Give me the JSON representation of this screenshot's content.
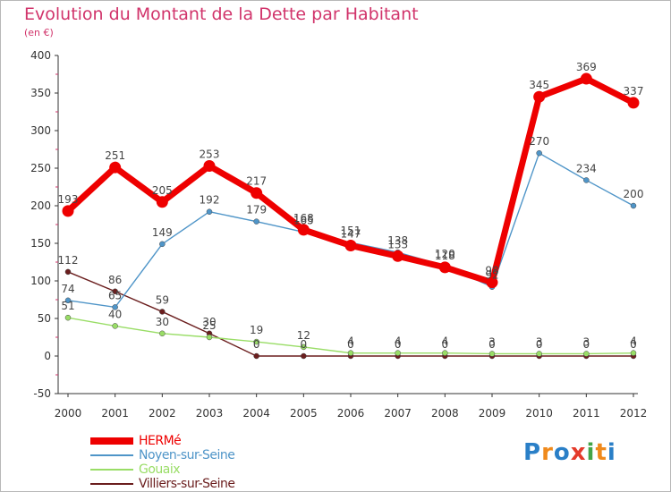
{
  "chart_data": {
    "type": "line",
    "title": "Evolution du Montant de la Dette par Habitant",
    "unit": "(en €)",
    "x": [
      "2000",
      "2001",
      "2002",
      "2003",
      "2004",
      "2005",
      "2006",
      "2007",
      "2008",
      "2009",
      "2010",
      "2011",
      "2012"
    ],
    "ylim": [
      -50,
      400
    ],
    "yticks": [
      -50,
      0,
      50,
      100,
      150,
      200,
      250,
      300,
      350,
      400
    ],
    "grid": false,
    "legend_position": "bottom-left",
    "series": [
      {
        "name": "HERMé",
        "color": "#ee0000",
        "values": [
          193,
          251,
          205,
          253,
          217,
          168,
          147,
          133,
          118,
          98,
          345,
          369,
          337
        ]
      },
      {
        "name": "Noyen-sur-Seine",
        "color": "#4f95c8",
        "values": [
          74,
          65,
          149,
          192,
          179,
          165,
          151,
          138,
          120,
          92,
          270,
          234,
          200
        ]
      },
      {
        "name": "Gouaix",
        "color": "#99dd66",
        "values": [
          51,
          40,
          30,
          25,
          19,
          12,
          4,
          4,
          4,
          3,
          3,
          3,
          4
        ]
      },
      {
        "name": "Villiers-sur-Seine",
        "color": "#6b1e1e",
        "values": [
          112,
          86,
          59,
          30,
          0,
          0,
          0,
          0,
          0,
          0,
          0,
          0,
          0
        ]
      }
    ]
  },
  "logo": {
    "letters": [
      "P",
      "r",
      "o",
      "x",
      "i",
      "t",
      "i"
    ],
    "colors": [
      "#2a7fc7",
      "#f08a1c",
      "#2a7fc7",
      "#e43a2a",
      "#43a447",
      "#f08a1c",
      "#2a7fc7"
    ]
  }
}
